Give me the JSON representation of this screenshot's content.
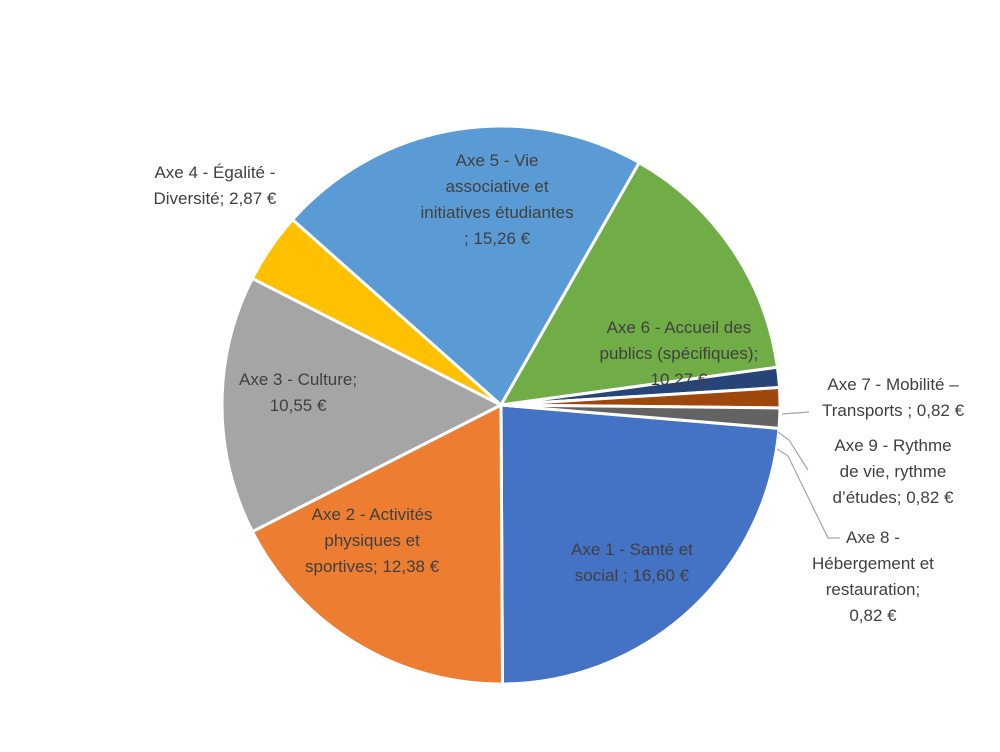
{
  "chart_data": {
    "type": "pie",
    "currency": "€",
    "slices": [
      {
        "label": "Axe 1 - Santé et social",
        "value": 16.6,
        "color": "#4472C4",
        "label_lines": [
          "Axe 1 - Santé et",
          "social ;  16,60 €"
        ]
      },
      {
        "label": "Axe 2 - Activités physiques et sportives",
        "value": 12.38,
        "color": "#ED7D31",
        "label_lines": [
          "Axe 2 - Activités",
          "physiques et",
          "sportives;  12,38 €"
        ]
      },
      {
        "label": "Axe 3 - Culture",
        "value": 10.55,
        "color": "#A5A5A5",
        "label_lines": [
          "Axe 3 - Culture;",
          "10,55 €"
        ]
      },
      {
        "label": "Axe 4 - Égalité - Diversité",
        "value": 2.87,
        "color": "#FFC000",
        "label_lines": [
          "Axe 4 - Égalité -",
          "Diversité;  2,87 €"
        ]
      },
      {
        "label": "Axe 5 - Vie associative et initiatives étudiantes",
        "value": 15.26,
        "color": "#5B9BD5",
        "label_lines": [
          "Axe 5 - Vie",
          "associative et",
          "initiatives étudiantes",
          ";  15,26 €"
        ]
      },
      {
        "label": "Axe 6 - Accueil des publics (spécifiques)",
        "value": 10.27,
        "color": "#70AD47",
        "label_lines": [
          "Axe 6 - Accueil des",
          "publics (spécifiques);",
          "10,27 €"
        ]
      },
      {
        "label": "Axe 7 - Mobilité – Transports",
        "value": 0.82,
        "color": "#264478",
        "label_lines": [
          "Axe 7 - Mobilité –",
          "Transports ;  0,82 €"
        ]
      },
      {
        "label": "Axe 9 - Rythme de vie, rythme d’études",
        "value": 0.82,
        "color": "#9E480E",
        "label_lines": [
          "Axe 9 - Rythme",
          "de vie, rythme",
          "d’études;  0,82 €"
        ]
      },
      {
        "label": "Axe 8 - Hébergement et restauration",
        "value": 0.82,
        "color": "#636363",
        "label_lines": [
          "Axe 8 -",
          "Hébergement et",
          "restauration;",
          "0,82 €"
        ]
      }
    ]
  }
}
